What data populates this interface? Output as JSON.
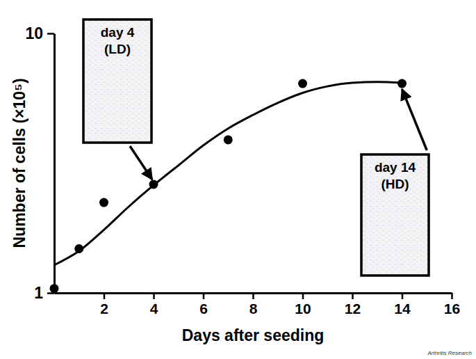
{
  "chart_data": {
    "type": "scatter",
    "x_label": "Days after seeding",
    "y_label": "Number of cells (×10⁵)",
    "xlim": [
      0,
      16
    ],
    "xticks": [
      2,
      4,
      6,
      8,
      10,
      12,
      14,
      16
    ],
    "ylim": [
      1,
      10
    ],
    "yticks": [
      1,
      10
    ],
    "log": "y",
    "grid": false,
    "series": [
      {
        "type": "scatter",
        "marker": "circle",
        "color": "#000000",
        "x": [
          0,
          1,
          2,
          4,
          7,
          10,
          14
        ],
        "values": [
          1.04,
          1.48,
          2.23,
          2.62,
          3.89,
          6.41,
          6.41
        ]
      },
      {
        "type": "line",
        "line_style": "solid",
        "color": "#000000",
        "x": [
          0,
          1,
          2,
          3,
          4,
          5,
          6,
          7,
          8,
          9,
          10,
          11,
          12,
          13,
          14
        ],
        "values": [
          1.28,
          1.45,
          1.75,
          2.15,
          2.6,
          3.1,
          3.7,
          4.3,
          4.85,
          5.4,
          5.9,
          6.25,
          6.45,
          6.5,
          6.45
        ]
      }
    ],
    "annotations": [
      {
        "lines": [
          "day 4",
          "(LD)"
        ],
        "x": 4,
        "y": 2.62
      },
      {
        "lines": [
          "day 14",
          "(HD)"
        ],
        "x": 14,
        "y": 6.41
      }
    ],
    "source": "Arthritis Research"
  }
}
